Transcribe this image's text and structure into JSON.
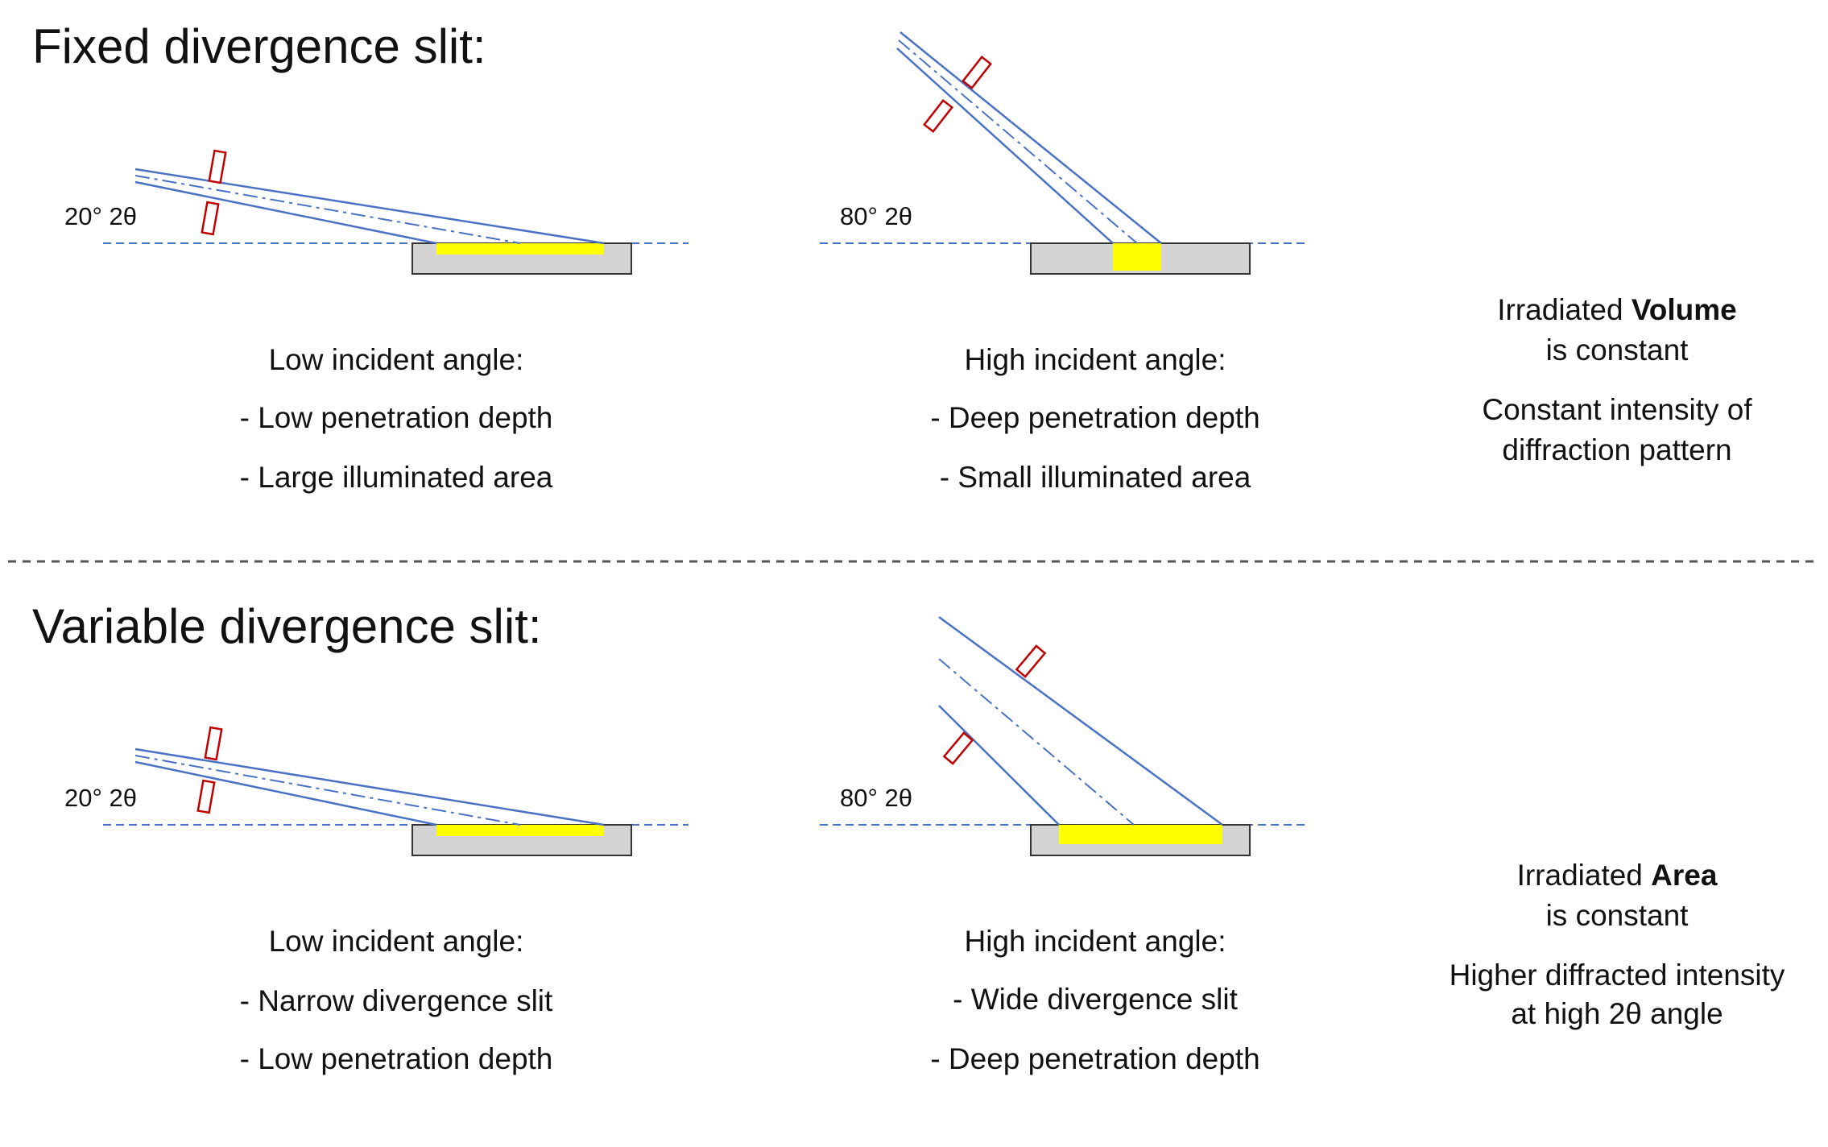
{
  "fixed": {
    "title": "Fixed divergence slit:",
    "low": {
      "angle_label": "20° 2θ",
      "captions": [
        "Low incident angle:",
        "- Low penetration depth",
        "- Large illuminated area"
      ]
    },
    "high": {
      "angle_label": "80° 2θ",
      "captions": [
        "High incident angle:",
        "- Deep penetration depth",
        "- Small illuminated area"
      ]
    },
    "note": {
      "line1_prefix": "Irradiated ",
      "line1_bold": "Volume",
      "line2": "is constant",
      "line3": "Constant intensity of",
      "line4": "diffraction pattern"
    }
  },
  "variable": {
    "title": "Variable divergence slit:",
    "low": {
      "angle_label": "20° 2θ",
      "captions": [
        "Low incident angle:",
        "- Narrow divergence slit",
        "- Low penetration depth"
      ]
    },
    "high": {
      "angle_label": "80° 2θ",
      "captions": [
        "High incident angle:",
        "- Wide divergence slit",
        "- Deep penetration depth"
      ]
    },
    "note": {
      "line1_prefix": "Irradiated ",
      "line1_bold": "Area",
      "line2": "is constant",
      "line3": "Higher diffracted intensity",
      "line4": "at high 2θ angle"
    }
  },
  "colors": {
    "beam": "#4a72c4",
    "slit": "#c00000",
    "sample_fill": "#d3d3d3",
    "sample_stroke": "#333333",
    "illuminated": "#ffff00",
    "separator": "#555555"
  }
}
